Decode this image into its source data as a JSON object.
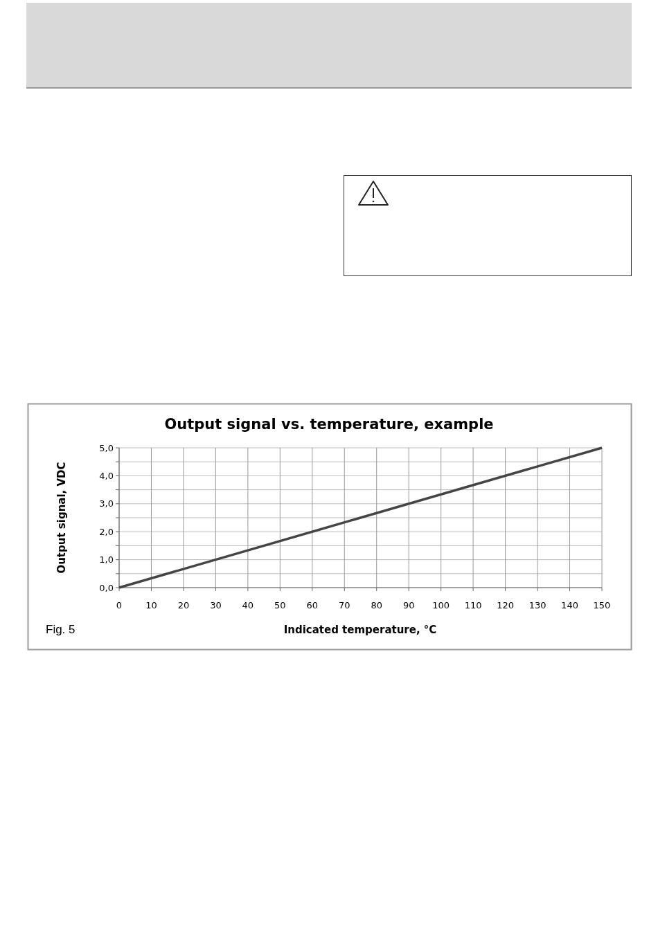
{
  "chart_data": {
    "type": "line",
    "title": "Output signal vs. temperature, example",
    "xlabel": "Indicated temperature, °C",
    "ylabel": "Output signal, VDC",
    "annotations": [
      "Fig. 5"
    ],
    "x": [
      0,
      150
    ],
    "series": [
      {
        "color": "#454545",
        "values": [
          0,
          5
        ]
      }
    ],
    "xlim": [
      0,
      150
    ],
    "xticks": [
      0,
      10,
      20,
      30,
      40,
      50,
      60,
      70,
      80,
      90,
      100,
      110,
      120,
      130,
      140,
      150
    ],
    "ylim": [
      0,
      5
    ],
    "yticks": [
      {
        "value": 0,
        "label": "0,0"
      },
      {
        "value": 0.5,
        "label": null
      },
      {
        "value": 1,
        "label": "1,0"
      },
      {
        "value": 1.5,
        "label": null
      },
      {
        "value": 2,
        "label": "2,0"
      },
      {
        "value": 2.5,
        "label": null
      },
      {
        "value": 3,
        "label": "3,0"
      },
      {
        "value": 3.5,
        "label": null
      },
      {
        "value": 4,
        "label": "4,0"
      },
      {
        "value": 4.5,
        "label": null
      },
      {
        "value": 5,
        "label": "5,0"
      }
    ],
    "grid": true,
    "line_style": "solid"
  }
}
